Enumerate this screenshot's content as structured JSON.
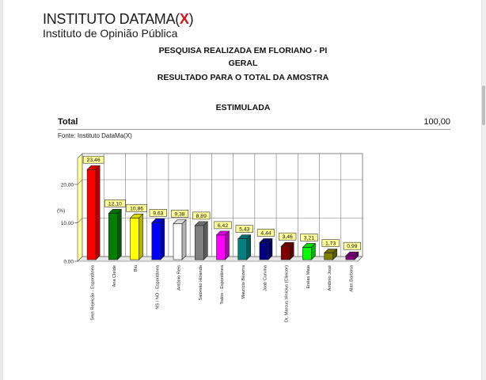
{
  "header": {
    "logo_prefix": "INSTITUTO DATAMA(",
    "logo_x": "X",
    "logo_suffix": ")",
    "logo_subtitle": "Instituto de Opinião Pública",
    "line1": "PESQUISA REALIZADA EM FLORIANO - PI",
    "line2": "GERAL",
    "line3": "RESULTADO PARA O TOTAL DA AMOSTRA"
  },
  "section": {
    "title": "ESTIMULADA",
    "total_label": "Total",
    "total_value": "100,00",
    "source": "Fonte: Instituto DataMa(X)"
  },
  "chart_data": {
    "type": "bar",
    "title": "ESTIMULADA",
    "xlabel": "",
    "ylabel": "(%)",
    "ylim": [
      0,
      27
    ],
    "yticks": [
      "0,00",
      "10,00",
      "20,00"
    ],
    "grid": true,
    "three_d": true,
    "categories": [
      "Sem Rejeição - Espontânea",
      "Ana Cleide",
      "Biú",
      "NS / NO - Espontânea",
      "Antônio Reis",
      "Salomão Holanda",
      "Todos - Espontânea",
      "Maurício Bezerra",
      "Joab Curvina",
      "Dr. Marcus Vinícius (Clinicor)",
      "Enéas Maia",
      "Antônio José",
      "Alan Barbosa"
    ],
    "values": [
      23.46,
      12.1,
      10.86,
      9.63,
      9.38,
      8.89,
      6.42,
      5.43,
      4.44,
      3.46,
      3.21,
      1.73,
      0.99
    ],
    "value_labels": [
      "23,46",
      "12,10",
      "10,86",
      "9,63",
      "9,38",
      "8,89",
      "6,42",
      "5,43",
      "4,44",
      "3,46",
      "3,21",
      "1,73",
      "0,99"
    ],
    "colors": [
      "#ff0000",
      "#008000",
      "#ffff00",
      "#0000ff",
      "#ffffff",
      "#808080",
      "#ff00ff",
      "#008080",
      "#000080",
      "#800000",
      "#00ff00",
      "#808000",
      "#800080"
    ]
  }
}
